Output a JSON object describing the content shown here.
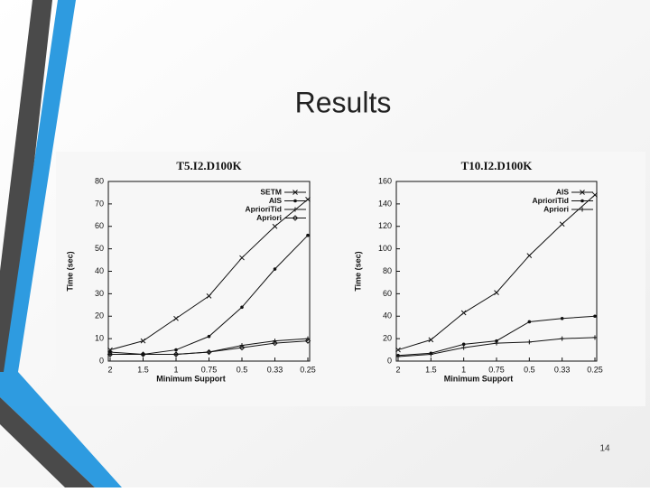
{
  "slide": {
    "title": "Results",
    "page_number": "14"
  },
  "chart_data": [
    {
      "type": "line",
      "title": "T5.I2.D100K",
      "x_label": "Minimum Support",
      "y_label": "Time (sec)",
      "categories": [
        "2",
        "1.5",
        "1",
        "0.75",
        "0.5",
        "0.33",
        "0.25"
      ],
      "ylim": [
        0,
        80
      ],
      "yticks": [
        0,
        10,
        20,
        30,
        40,
        50,
        60,
        70,
        80
      ],
      "legend": "upper right",
      "series": [
        {
          "name": "SETM",
          "color": "#111111",
          "values": [
            5,
            9,
            19,
            29,
            46,
            60,
            72
          ]
        },
        {
          "name": "AIS",
          "color": "#111111",
          "values": [
            4,
            3,
            5,
            11,
            24,
            41,
            56
          ]
        },
        {
          "name": "AprioriTid",
          "color": "#111111",
          "values": [
            3,
            3,
            3,
            4,
            7,
            9,
            10
          ]
        },
        {
          "name": "Apriori",
          "color": "#111111",
          "values": [
            3,
            3,
            3,
            4,
            6,
            8,
            9
          ]
        }
      ]
    },
    {
      "type": "line",
      "title": "T10.I2.D100K",
      "x_label": "Minimum Support",
      "y_label": "Time (sec)",
      "categories": [
        "2",
        "1.5",
        "1",
        "0.75",
        "0.5",
        "0.33",
        "0.25"
      ],
      "ylim": [
        0,
        160
      ],
      "yticks": [
        0,
        20,
        40,
        60,
        80,
        100,
        120,
        140,
        160
      ],
      "legend": "upper right",
      "series": [
        {
          "name": "AIS",
          "color": "#111111",
          "values": [
            10,
            19,
            43,
            61,
            94,
            122,
            148
          ]
        },
        {
          "name": "AprioriTid",
          "color": "#111111",
          "values": [
            5,
            7,
            15,
            18,
            35,
            38,
            40
          ]
        },
        {
          "name": "Apriori",
          "color": "#111111",
          "values": [
            4,
            6,
            12,
            16,
            17,
            20,
            21
          ]
        }
      ]
    }
  ]
}
